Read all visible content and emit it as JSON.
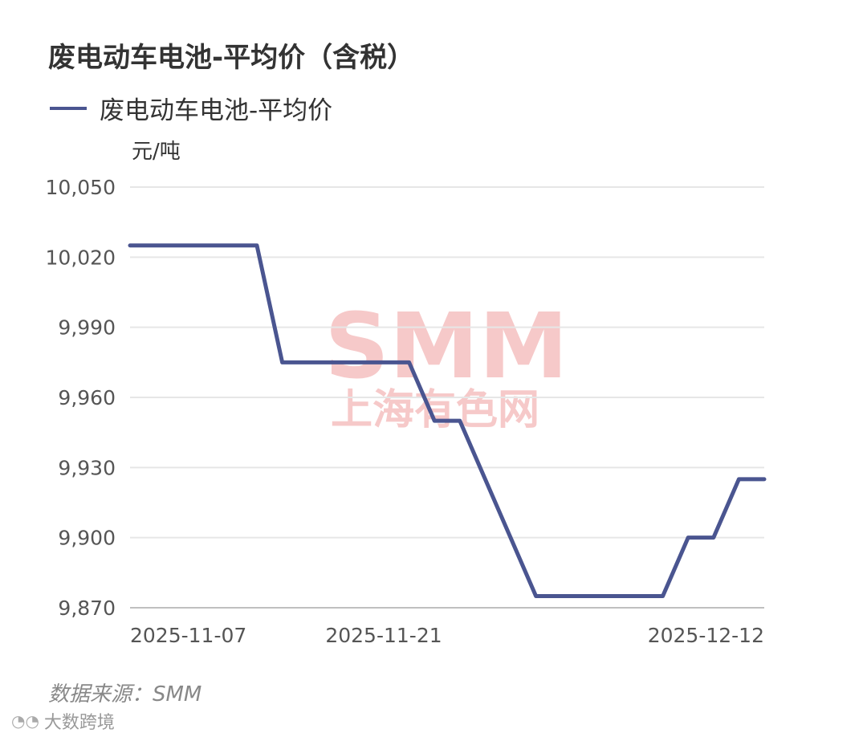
{
  "title": "废电动车电池-平均价（含税）",
  "source": "数据来源：SMM",
  "brand": {
    "icon": "eye-logo-icon",
    "text": "大数跨境"
  },
  "watermark": {
    "line1": "SMM",
    "line2": "上海有色网",
    "color": "#f6c9c9"
  },
  "colors": {
    "series": "#4a5590",
    "grid": "#e6e6e6",
    "axis": "#bfbfbf",
    "text": "#555555"
  },
  "chart_data": {
    "type": "line",
    "title": "废电动车电池-平均价（含税）",
    "ylabel": "元/吨",
    "ylim": [
      9870,
      10050
    ],
    "yticks": [
      10050,
      10020,
      9990,
      9960,
      9930,
      9900,
      9870
    ],
    "ytick_labels": [
      "10,050",
      "10,020",
      "9,990",
      "9,960",
      "9,930",
      "9,900",
      "9,870"
    ],
    "x": [
      "2025-11-07",
      "2025-11-10",
      "2025-11-11",
      "2025-11-12",
      "2025-11-13",
      "2025-11-14",
      "2025-11-17",
      "2025-11-18",
      "2025-11-19",
      "2025-11-20",
      "2025-11-21",
      "2025-11-24",
      "2025-11-25",
      "2025-11-26",
      "2025-11-27",
      "2025-11-28",
      "2025-12-01",
      "2025-12-02",
      "2025-12-03",
      "2025-12-04",
      "2025-12-05",
      "2025-12-08",
      "2025-12-09",
      "2025-12-10",
      "2025-12-11",
      "2025-12-12"
    ],
    "xtick_labels": [
      "2025-11-07",
      "2025-11-21",
      "2025-12-12"
    ],
    "grid": true,
    "legend": "top-left",
    "series": [
      {
        "name": "废电动车电池-平均价",
        "values": [
          10025,
          10025,
          10025,
          10025,
          10025,
          10025,
          9975,
          9975,
          9975,
          9975,
          9975,
          9975,
          9950,
          9950,
          9925,
          9900,
          9875,
          9875,
          9875,
          9875,
          9875,
          9875,
          9900,
          9900,
          9925,
          9925
        ]
      }
    ]
  }
}
